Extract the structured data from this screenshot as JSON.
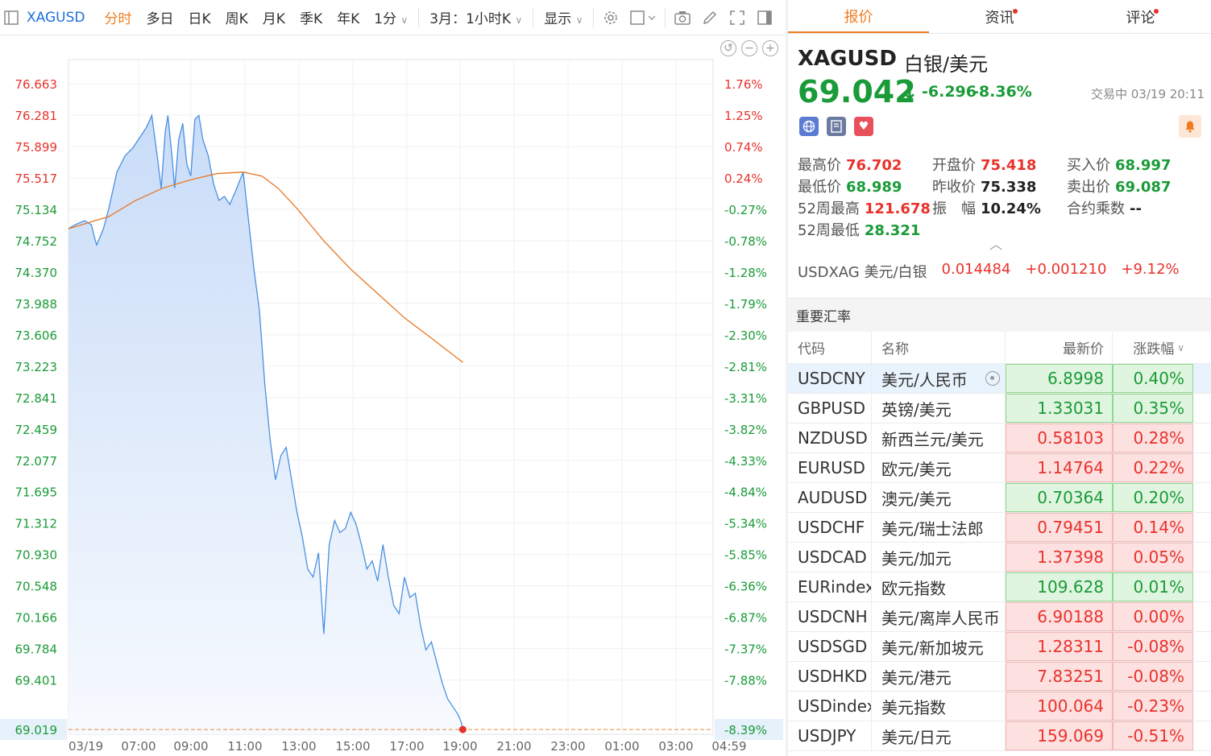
{
  "toolbar": {
    "symbol": "XAGUSD",
    "tabs": [
      "分时",
      "多日",
      "日K",
      "周K",
      "月K",
      "季K",
      "年K"
    ],
    "interval": "1分",
    "range": "3月：1小时K",
    "display": "显示"
  },
  "colors": {
    "up": "#e8322c",
    "down": "#1a9b38",
    "line": "#4a90e2",
    "avg": "#e87722",
    "accent": "#f07c1e"
  },
  "chart_data": {
    "type": "line",
    "title": "",
    "y_left_labels": [
      "76.663",
      "76.281",
      "75.899",
      "75.517",
      "75.134",
      "74.752",
      "74.370",
      "73.988",
      "73.606",
      "73.223",
      "72.841",
      "72.459",
      "72.077",
      "71.695",
      "71.312",
      "70.930",
      "70.548",
      "70.166",
      "69.784",
      "69.401"
    ],
    "y_right_labels": [
      "1.76%",
      "1.25%",
      "0.74%",
      "0.24%",
      "-0.27%",
      "-0.78%",
      "-1.28%",
      "-1.79%",
      "-2.30%",
      "-2.81%",
      "-3.31%",
      "-3.82%",
      "-4.33%",
      "-4.84%",
      "-5.34%",
      "-5.85%",
      "-6.36%",
      "-6.87%",
      "-7.37%",
      "-7.88%"
    ],
    "current_left": "69.019",
    "current_right": "-8.39%",
    "x_labels": [
      "03/19",
      "07:00",
      "09:00",
      "11:00",
      "13:00",
      "15:00",
      "17:00",
      "19:00",
      "21:00",
      "23:00",
      "01:00",
      "03:00",
      "04:59"
    ],
    "ylim": [
      68.96,
      77.01
    ],
    "xlim": [
      5,
      28.98
    ],
    "series": [
      {
        "key": "price",
        "x": [
          5,
          5.25,
          5.6,
          5.85,
          6,
          6.05,
          6.3,
          6.5,
          6.8,
          7.1,
          7.4,
          7.6,
          7.9,
          8.1,
          8.3,
          8.45,
          8.6,
          8.7,
          8.85,
          8.95,
          9.1,
          9.25,
          9.4,
          9.55,
          9.7,
          9.85,
          10.0,
          10.2,
          10.4,
          10.6,
          10.8,
          11.0,
          11.2,
          11.5,
          11.7,
          11.9,
          12.1,
          12.3,
          12.5,
          12.7,
          12.9,
          13.1,
          13.3,
          13.5,
          13.7,
          13.9,
          14.1,
          14.3,
          14.5,
          14.7,
          14.9,
          15.1,
          15.3,
          15.5,
          15.7,
          15.9,
          16.1,
          16.3,
          16.5,
          16.7,
          16.9,
          17.1,
          17.3,
          17.5,
          17.7,
          17.9,
          18.1,
          18.3,
          18.5,
          18.7,
          18.9,
          19.1,
          19.3,
          19.5,
          19.62,
          19.67
        ],
        "values": [
          75.2,
          75.25,
          75.3,
          75.25,
          75.05,
          75.0,
          75.2,
          75.45,
          75.9,
          76.1,
          76.2,
          76.3,
          76.45,
          76.6,
          76.1,
          75.7,
          76.4,
          76.6,
          76.1,
          75.7,
          76.3,
          76.5,
          76.0,
          75.85,
          76.55,
          76.6,
          76.3,
          76.1,
          75.75,
          75.55,
          75.6,
          75.5,
          75.65,
          75.9,
          75.3,
          74.7,
          74.2,
          73.3,
          72.6,
          72.1,
          72.4,
          72.5,
          72.1,
          71.7,
          71.4,
          71.0,
          70.9,
          71.2,
          70.2,
          71.3,
          71.6,
          71.45,
          71.5,
          71.7,
          71.55,
          71.3,
          71.0,
          71.1,
          70.85,
          71.3,
          70.9,
          70.55,
          70.45,
          70.9,
          70.65,
          70.7,
          70.3,
          70.0,
          70.1,
          69.85,
          69.6,
          69.4,
          69.3,
          69.2,
          69.1,
          69.02
        ]
      },
      {
        "key": "avg",
        "x": [
          5,
          6.5,
          7.5,
          8.5,
          9.5,
          10.5,
          11.5,
          12.2,
          12.8,
          13.5,
          14.5,
          15.5,
          16.5,
          17.5,
          18.5,
          19.67
        ],
        "values": [
          75.2,
          75.35,
          75.55,
          75.7,
          75.8,
          75.88,
          75.9,
          75.85,
          75.7,
          75.45,
          75.05,
          74.7,
          74.4,
          74.1,
          73.85,
          73.55
        ]
      }
    ]
  },
  "right_panel": {
    "tabs": [
      {
        "label": "报价",
        "active": true,
        "dot": false
      },
      {
        "label": "资讯",
        "active": false,
        "dot": true
      },
      {
        "label": "评论",
        "active": false,
        "dot": true
      }
    ],
    "code": "XAGUSD",
    "name": "白银/美元",
    "price": "69.042",
    "arrow": "↓",
    "change": "-6.296",
    "change_pct": "-8.36%",
    "status": "交易中 03/19 20:11",
    "stats": [
      [
        {
          "label": "最高价",
          "value": "76.702",
          "color": "red"
        },
        {
          "label": "开盘价",
          "value": "75.418",
          "color": "red"
        },
        {
          "label": "买入价",
          "value": "68.997",
          "color": "grn"
        }
      ],
      [
        {
          "label": "最低价",
          "value": "68.989",
          "color": "grn"
        },
        {
          "label": "昨收价",
          "value": "75.338",
          "color": "dark"
        },
        {
          "label": "卖出价",
          "value": "69.087",
          "color": "grn"
        }
      ],
      [
        {
          "label": "52周最高",
          "value": "121.678",
          "color": "red"
        },
        {
          "label": "振　幅",
          "value": "10.24%",
          "color": "dark"
        },
        {
          "label": "合约乘数",
          "value": "--",
          "color": "dark"
        }
      ],
      [
        {
          "label": "52周最低",
          "value": "28.321",
          "color": "grn"
        }
      ]
    ],
    "inverse": {
      "name": "USDXAG 美元/白银",
      "price": "0.014484",
      "change": "+0.001210",
      "pct": "+9.12%"
    },
    "important_rates_title": "重要汇率",
    "table_headers": [
      "代码",
      "名称",
      "最新价",
      "涨跌幅"
    ],
    "rows": [
      {
        "code": "USDCNY",
        "name": "美元/人民币",
        "price": "6.8998",
        "pct": "0.40%",
        "dir": "neg",
        "selected": true
      },
      {
        "code": "GBPUSD",
        "name": "英镑/美元",
        "price": "1.33031",
        "pct": "0.35%",
        "dir": "neg"
      },
      {
        "code": "NZDUSD",
        "name": "新西兰元/美元",
        "price": "0.58103",
        "pct": "0.28%",
        "dir": "pos"
      },
      {
        "code": "EURUSD",
        "name": "欧元/美元",
        "price": "1.14764",
        "pct": "0.22%",
        "dir": "pos"
      },
      {
        "code": "AUDUSD",
        "name": "澳元/美元",
        "price": "0.70364",
        "pct": "0.20%",
        "dir": "neg"
      },
      {
        "code": "USDCHF",
        "name": "美元/瑞士法郎",
        "price": "0.79451",
        "pct": "0.14%",
        "dir": "pos"
      },
      {
        "code": "USDCAD",
        "name": "美元/加元",
        "price": "1.37398",
        "pct": "0.05%",
        "dir": "pos"
      },
      {
        "code": "EURindex",
        "name": "欧元指数",
        "price": "109.628",
        "pct": "0.01%",
        "dir": "neg"
      },
      {
        "code": "USDCNH",
        "name": "美元/离岸人民币",
        "price": "6.90188",
        "pct": "0.00%",
        "dir": "pos"
      },
      {
        "code": "USDSGD",
        "name": "美元/新加坡元",
        "price": "1.28311",
        "pct": "-0.08%",
        "dir": "pos"
      },
      {
        "code": "USDHKD",
        "name": "美元/港元",
        "price": "7.83251",
        "pct": "-0.08%",
        "dir": "pos"
      },
      {
        "code": "USDindex",
        "name": "美元指数",
        "price": "100.064",
        "pct": "-0.23%",
        "dir": "pos"
      },
      {
        "code": "USDJPY",
        "name": "美元/日元",
        "price": "159.069",
        "pct": "-0.51%",
        "dir": "pos"
      }
    ]
  }
}
